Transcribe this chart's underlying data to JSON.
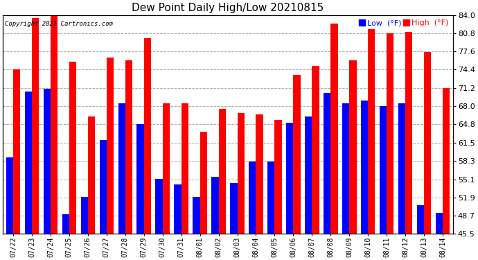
{
  "title": "Dew Point Daily High/Low 20210815",
  "copyright": "Copyright 2021 Cartronics.com",
  "legend_low": "Low  (°F)",
  "legend_high": "High  (°F)",
  "background_color": "#ffffff",
  "grid_color": "#aaaaaa",
  "ylim": [
    45.5,
    84.0
  ],
  "ybase": 45.5,
  "yticks": [
    45.5,
    48.7,
    51.9,
    55.1,
    58.3,
    61.5,
    64.8,
    68.0,
    71.2,
    74.4,
    77.6,
    80.8,
    84.0
  ],
  "dates": [
    "07/22",
    "07/23",
    "07/24",
    "07/25",
    "07/26",
    "07/27",
    "07/28",
    "07/29",
    "07/30",
    "07/31",
    "08/01",
    "08/02",
    "08/03",
    "08/04",
    "08/05",
    "08/06",
    "08/07",
    "08/08",
    "08/09",
    "08/10",
    "08/11",
    "08/12",
    "08/13",
    "08/14"
  ],
  "high": [
    74.5,
    83.5,
    84.2,
    75.8,
    66.2,
    76.5,
    76.0,
    80.0,
    68.5,
    68.5,
    63.5,
    67.5,
    66.8,
    66.5,
    65.5,
    73.5,
    75.0,
    82.5,
    76.0,
    81.5,
    80.8,
    81.0,
    77.5,
    71.2
  ],
  "low": [
    59.0,
    70.5,
    71.0,
    49.0,
    52.0,
    62.0,
    68.5,
    64.8,
    55.2,
    54.2,
    52.0,
    55.5,
    54.5,
    58.2,
    58.2,
    65.0,
    66.2,
    70.3,
    68.5,
    69.0,
    68.0,
    68.5,
    50.5,
    49.2
  ],
  "bar_width": 0.38,
  "low_color": "#0000ff",
  "high_color": "#ff0000",
  "title_fontsize": 11,
  "tick_fontsize": 8,
  "xlabel_fontsize": 7
}
